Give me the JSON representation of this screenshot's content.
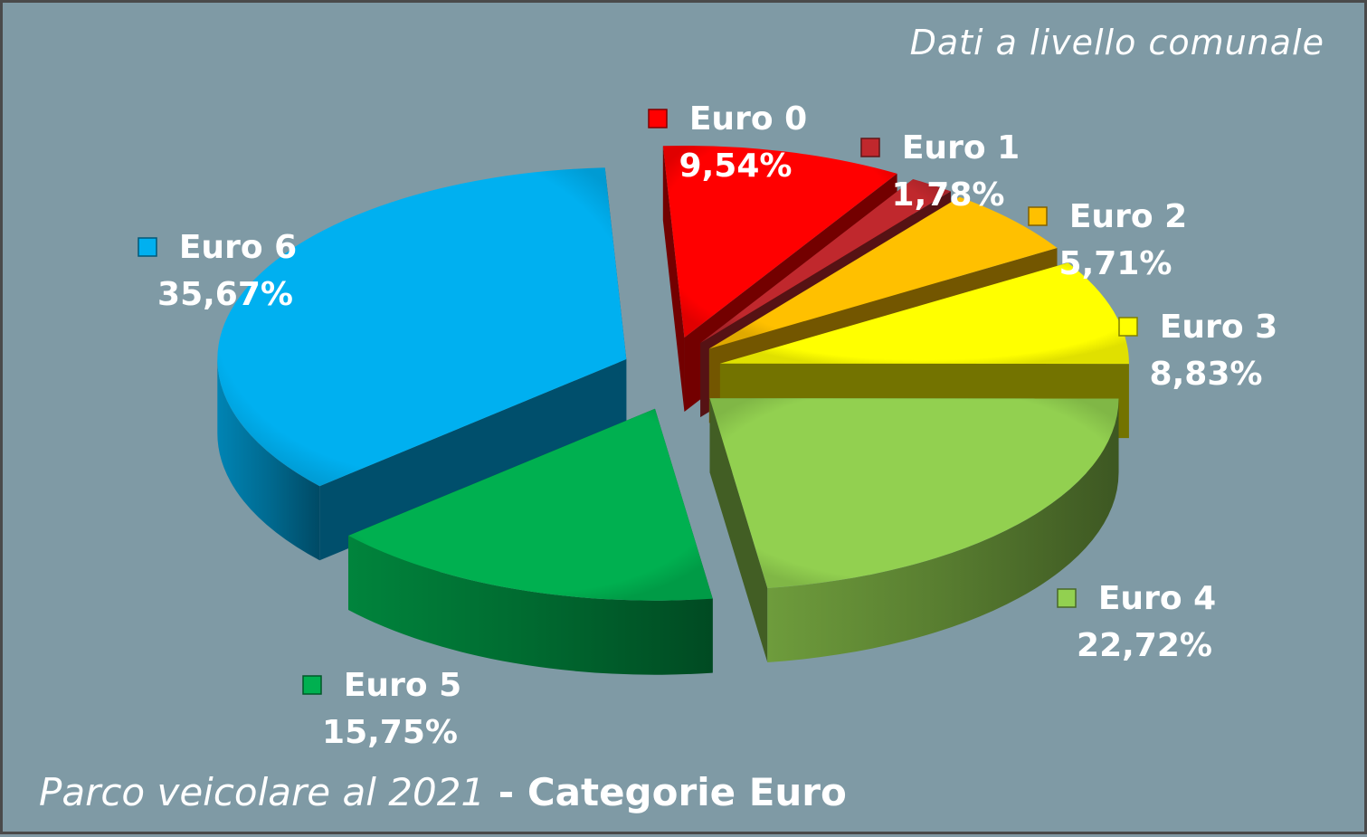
{
  "subtitle": "Dati a livello comunale",
  "footer": {
    "left": "Parco veicolare al 2021",
    "sep": " - ",
    "right": "Categorie Euro"
  },
  "chart_data": {
    "type": "pie",
    "categories": [
      "Euro 0",
      "Euro 1",
      "Euro 2",
      "Euro 3",
      "Euro 4",
      "Euro 5",
      "Euro 6"
    ],
    "values": [
      9.54,
      1.78,
      5.71,
      8.83,
      22.72,
      15.75,
      35.67
    ],
    "value_labels": [
      "9,54%",
      "1,78%",
      "5,71%",
      "8,83%",
      "22,72%",
      "15,75%",
      "35,67%"
    ],
    "colors": [
      "#ff0000",
      "#c0282d",
      "#ffc000",
      "#ffff00",
      "#92d050",
      "#00b050",
      "#00b0f0"
    ],
    "legend": "labels beside slices",
    "exploded": true,
    "style": "3d"
  }
}
